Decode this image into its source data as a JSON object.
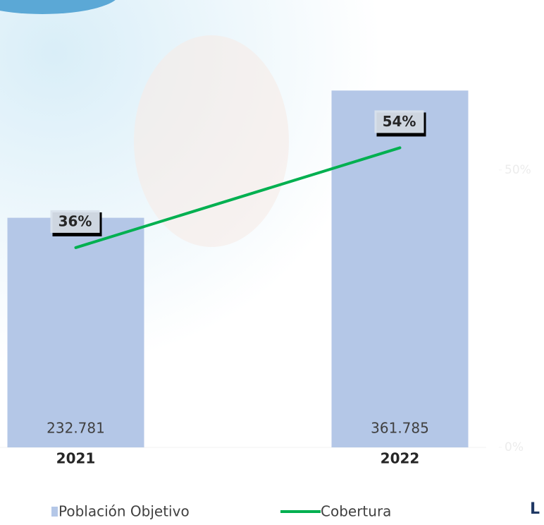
{
  "chart_data": {
    "type": "bar-line",
    "categories": [
      "2021",
      "2022"
    ],
    "series": [
      {
        "name": "Población Objetivo",
        "color": "#b4c7e7",
        "values": [
          232781,
          361785
        ],
        "value_labels": [
          "232.781",
          "361.785"
        ]
      },
      {
        "name": "Cobertura",
        "color": "#00b050",
        "axis": "y2",
        "values": [
          36,
          54
        ],
        "value_labels": [
          "36%",
          "54%"
        ]
      }
    ],
    "ylim": [
      0,
      450000
    ],
    "y2lim": [
      0,
      80
    ],
    "y2ticks": [
      {
        "value": 0,
        "label": "0%"
      },
      {
        "value": 50,
        "label": "50%"
      }
    ],
    "fragment": "L"
  }
}
